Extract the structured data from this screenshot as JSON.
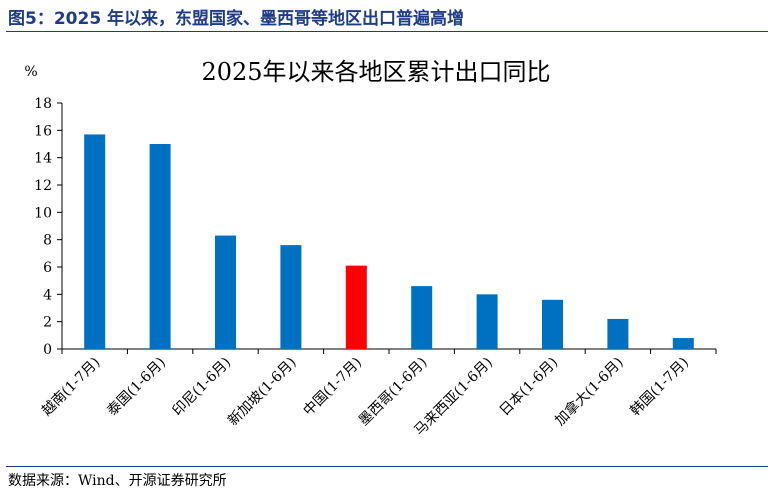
{
  "header": {
    "figure_caption": "图5：2025 年以来，东盟国家、墨西哥等地区出口普遍高增"
  },
  "footer": {
    "source": "数据来源：Wind、开源证券研究所"
  },
  "chart_data": {
    "type": "bar",
    "title": "2025年以来各地区累计出口同比",
    "ylabel": "%",
    "xlabel": "",
    "ylim": [
      0,
      18
    ],
    "yticks": [
      0,
      2,
      4,
      6,
      8,
      10,
      12,
      14,
      16,
      18
    ],
    "grid": false,
    "categories": [
      "越南(1-7月)",
      "泰国(1-6月)",
      "印尼(1-6月)",
      "新加坡(1-6月)",
      "中国(1-7月)",
      "墨西哥(1-6月)",
      "马来西亚(1-6月)",
      "日本(1-6月)",
      "加拿大(1-6月)",
      "韩国(1-7月)"
    ],
    "values": [
      15.7,
      15.0,
      8.3,
      7.6,
      6.1,
      4.6,
      4.0,
      3.6,
      2.2,
      0.8
    ],
    "colors": [
      "#0070c0",
      "#0070c0",
      "#0070c0",
      "#0070c0",
      "#ff0000",
      "#0070c0",
      "#0070c0",
      "#0070c0",
      "#0070c0",
      "#0070c0"
    ]
  }
}
